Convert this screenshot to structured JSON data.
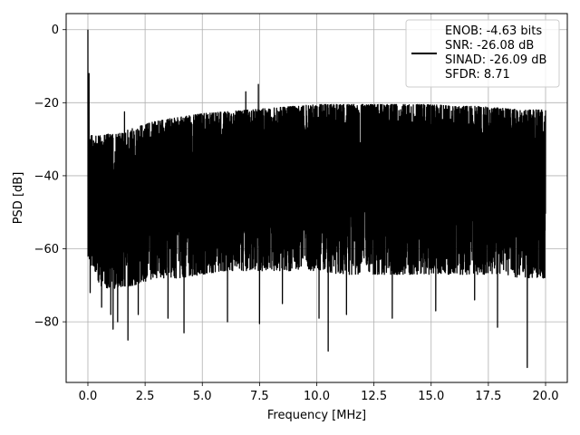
{
  "chart_data": {
    "type": "line",
    "title": "",
    "xlabel": "Frequency [MHz]",
    "ylabel": "PSD [dB]",
    "xlim": [
      -0.95,
      20.95
    ],
    "ylim": [
      -96.6,
      4.4
    ],
    "xticks": [
      0.0,
      2.5,
      5.0,
      7.5,
      10.0,
      12.5,
      15.0,
      17.5,
      20.0
    ],
    "xtick_labels": [
      "0.0",
      "2.5",
      "5.0",
      "7.5",
      "10.0",
      "12.5",
      "15.0",
      "17.5",
      "20.0"
    ],
    "yticks": [
      0,
      -20,
      -40,
      -60,
      -80
    ],
    "ytick_labels": [
      "0",
      "−20",
      "−40",
      "−60",
      "−80"
    ],
    "grid": true,
    "legend_position": "top-right",
    "series_color": "#000000",
    "series": [
      {
        "name": "",
        "description_of_shape": "",
        "x_range": [
          0,
          20
        ],
        "upper_envelope": {
          "x": [
            0.0,
            0.1,
            0.5,
            1.0,
            1.5,
            2.0,
            2.5,
            3.0,
            4.0,
            5.0,
            6.0,
            7.0,
            8.0,
            9.0,
            10.0,
            11.0,
            12.0,
            13.0,
            14.0,
            15.0,
            16.0,
            17.0,
            18.0,
            19.0,
            20.0
          ],
          "y": [
            -25,
            -29,
            -29,
            -28.5,
            -28,
            -27,
            -26,
            -25,
            -24,
            -23,
            -22.5,
            -22,
            -21.5,
            -21,
            -20.5,
            -20.5,
            -20.5,
            -20.5,
            -20.5,
            -20.5,
            -21,
            -21,
            -21.5,
            -22,
            -22
          ]
        },
        "lower_envelope": {
          "x": [
            0.0,
            0.5,
            1.0,
            2.0,
            3.0,
            4.0,
            5.0,
            6.0,
            7.0,
            8.0,
            9.0,
            10.0,
            11.0,
            12.0,
            13.0,
            14.0,
            15.0,
            16.0,
            17.0,
            18.0,
            19.0,
            20.0
          ],
          "y": [
            -62,
            -70,
            -71,
            -70,
            -68,
            -68,
            -67,
            -66,
            -66,
            -66,
            -66,
            -66,
            -67,
            -67,
            -67,
            -67,
            -67,
            -67,
            -67,
            -67,
            -68,
            -68
          ]
        },
        "peaks": [
          {
            "x": 0.0,
            "y": 0.0
          },
          {
            "x": 0.05,
            "y": -12.0
          },
          {
            "x": 1.6,
            "y": -22.5
          },
          {
            "x": 6.9,
            "y": -17.0
          },
          {
            "x": 7.45,
            "y": -15.0
          },
          {
            "x": 7.6,
            "y": -22.0
          }
        ],
        "dips": [
          {
            "x": 0.1,
            "y": -72.0
          },
          {
            "x": 0.6,
            "y": -76.0
          },
          {
            "x": 1.0,
            "y": -78.0
          },
          {
            "x": 1.1,
            "y": -82.0
          },
          {
            "x": 1.3,
            "y": -80.0
          },
          {
            "x": 1.75,
            "y": -85.0
          },
          {
            "x": 2.2,
            "y": -78.0
          },
          {
            "x": 3.5,
            "y": -79.0
          },
          {
            "x": 4.2,
            "y": -83.0
          },
          {
            "x": 6.1,
            "y": -80.0
          },
          {
            "x": 7.5,
            "y": -80.5
          },
          {
            "x": 8.5,
            "y": -75.0
          },
          {
            "x": 10.1,
            "y": -79.0
          },
          {
            "x": 10.5,
            "y": -88.0
          },
          {
            "x": 11.3,
            "y": -78.0
          },
          {
            "x": 13.3,
            "y": -79.0
          },
          {
            "x": 15.2,
            "y": -77.0
          },
          {
            "x": 16.9,
            "y": -74.0
          },
          {
            "x": 17.9,
            "y": -81.5
          },
          {
            "x": 19.2,
            "y": -92.5
          },
          {
            "x": 19.9,
            "y": -68.0
          }
        ]
      }
    ],
    "legend": {
      "lines": [
        "ENOB: -4.63 bits",
        "SNR: -26.08 dB",
        "SINAD: -26.09 dB",
        "SFDR: 8.71"
      ]
    }
  }
}
